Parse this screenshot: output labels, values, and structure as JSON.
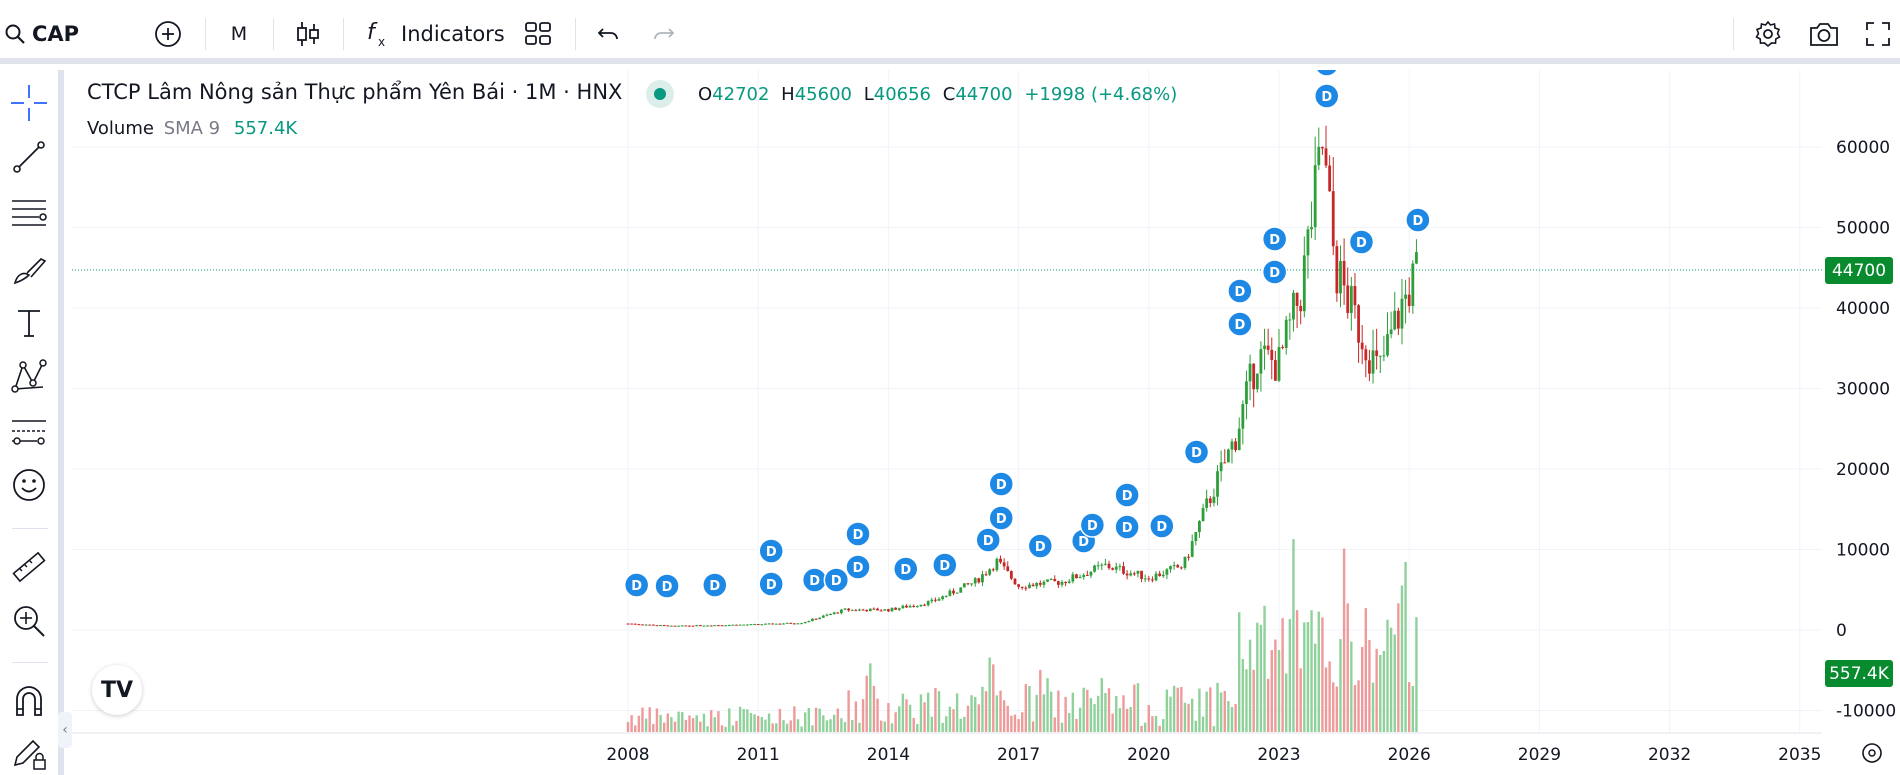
{
  "toolbar": {
    "symbol": "CAP",
    "interval": "M",
    "indicators_label": "Indicators"
  },
  "legend": {
    "title": "CTCP Lâm Nông sản Thực phẩm Yên Bái · 1M · HNX",
    "open_key": "O",
    "open": "42702",
    "high_key": "H",
    "high": "45600",
    "low_key": "L",
    "low": "40656",
    "close_key": "C",
    "close": "44700",
    "change": "+1998 (+4.68%)",
    "volume_label": "Volume",
    "sma_label": "SMA 9",
    "volume_value": "557.4K"
  },
  "price_axis": {
    "labels": [
      "60000",
      "50000",
      "40000",
      "30000",
      "20000",
      "10000",
      "0",
      "-10000"
    ],
    "last_price_tag": "44700",
    "last_volume_tag": "557.4K"
  },
  "time_axis": {
    "labels": [
      "2008",
      "2011",
      "2014",
      "2017",
      "2020",
      "2023",
      "2026",
      "2029",
      "2032",
      "2035"
    ]
  },
  "chart_data": {
    "type": "candlestick",
    "interval": "1M",
    "series": [
      {
        "name": "price",
        "points": [
          [
            2008.0,
            800
          ],
          [
            2009.0,
            500
          ],
          [
            2010.0,
            600
          ],
          [
            2011.0,
            700
          ],
          [
            2012.0,
            900
          ],
          [
            2013.0,
            2500
          ],
          [
            2014.0,
            2500
          ],
          [
            2015.0,
            3500
          ],
          [
            2016.0,
            6000
          ],
          [
            2016.5,
            8500
          ],
          [
            2017.0,
            5500
          ],
          [
            2018.0,
            6000
          ],
          [
            2019.0,
            8000
          ],
          [
            2020.0,
            6500
          ],
          [
            2020.8,
            8000
          ],
          [
            2021.3,
            15000
          ],
          [
            2022.0,
            24000
          ],
          [
            2022.5,
            34000
          ],
          [
            2023.0,
            33000
          ],
          [
            2023.5,
            42000
          ],
          [
            2024.0,
            60000
          ],
          [
            2024.3,
            45000
          ],
          [
            2024.8,
            38000
          ],
          [
            2025.3,
            32000
          ],
          [
            2025.8,
            40000
          ],
          [
            2026.2,
            44700
          ]
        ]
      }
    ],
    "volume_scale": "K",
    "dividend_markers": [
      "D"
    ],
    "ylim": [
      -10000,
      65000
    ],
    "xlim": [
      2008,
      2035
    ],
    "grid": true
  }
}
